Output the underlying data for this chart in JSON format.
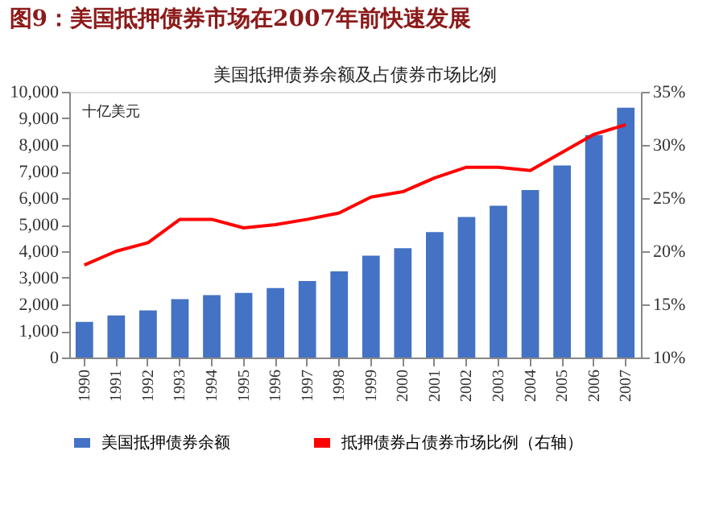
{
  "chart_data": {
    "type": "bar",
    "title": "图9：美国抵押债券市场在2007年前快速发展",
    "subtitle": "美国抵押债券余额及占债券市场比例",
    "annotations": [
      "十亿美元"
    ],
    "categories": [
      "1990",
      "1991",
      "1992",
      "1993",
      "1994",
      "1995",
      "1996",
      "1997",
      "1998",
      "1999",
      "2000",
      "2001",
      "2002",
      "2003",
      "2004",
      "2005",
      "2006",
      "2007"
    ],
    "series": [
      {
        "name": "美国抵押债券余额",
        "color": "#4472c4",
        "values": [
          1340,
          1580,
          1770,
          2200,
          2350,
          2430,
          2610,
          2880,
          3240,
          3830,
          4110,
          4720,
          5290,
          5710,
          6300,
          7230,
          8370,
          9400
        ]
      },
      {
        "name": "抵押债券占债券市场比例（右轴）",
        "type": "line",
        "axis": "y2",
        "color": "#ff0000",
        "values": [
          18.7,
          20.0,
          20.8,
          23.0,
          23.0,
          22.2,
          22.5,
          23.0,
          23.6,
          25.1,
          25.6,
          26.9,
          27.9,
          27.9,
          27.6,
          29.3,
          31.0,
          31.9
        ]
      }
    ],
    "ylim": [
      0,
      10000
    ],
    "yticks": [
      0,
      {
        "value": 1000,
        "label": "1,000"
      },
      {
        "value": 2000,
        "label": "2,000"
      },
      {
        "value": 3000,
        "label": "3,000"
      },
      {
        "value": 4000,
        "label": "4,000"
      },
      {
        "value": 5000,
        "label": "5,000"
      },
      {
        "value": 6000,
        "label": "6,000"
      },
      {
        "value": 7000,
        "label": "7,000"
      },
      {
        "value": 8000,
        "label": "8,000"
      },
      {
        "value": 9000,
        "label": "9,000"
      },
      {
        "value": 10000,
        "label": "10,000"
      }
    ],
    "y2lim": [
      10,
      35
    ],
    "y2ticks": [
      {
        "value": 10,
        "label": "10%"
      },
      {
        "value": 15,
        "label": "15%"
      },
      {
        "value": 20,
        "label": "20%"
      },
      {
        "value": 25,
        "label": "25%"
      },
      {
        "value": 30,
        "label": "30%"
      },
      {
        "value": 35,
        "label": "35%"
      }
    ],
    "grid": false,
    "legend": "bottom"
  }
}
